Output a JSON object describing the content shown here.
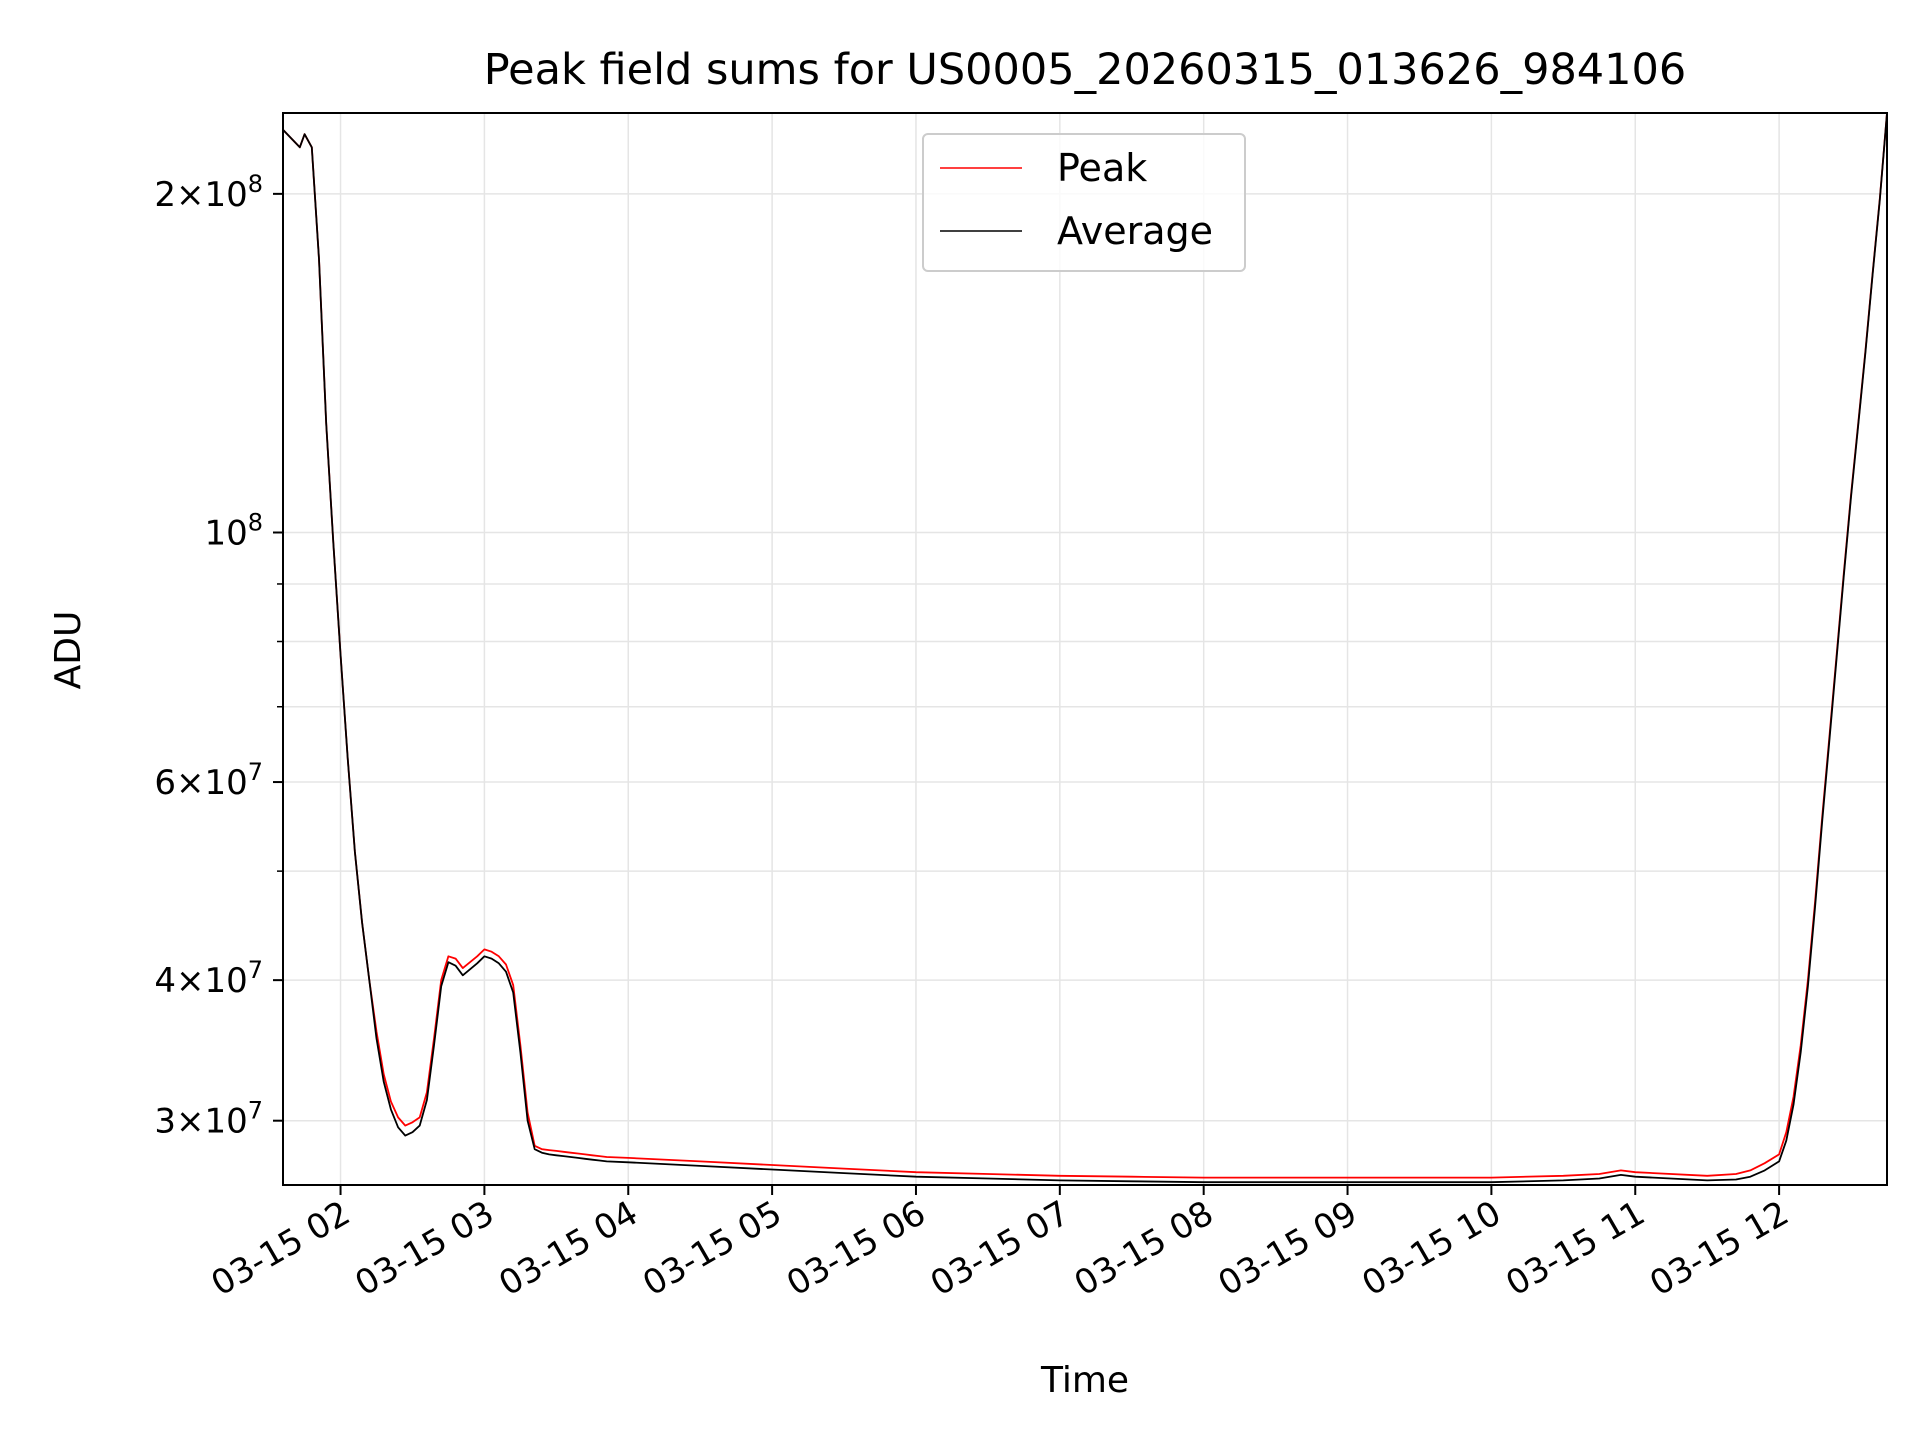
{
  "chart_data": {
    "type": "line",
    "title": "Peak field sums for US0005_20260315_013626_984106",
    "xlabel": "Time",
    "ylabel": "ADU",
    "y_scale": "log",
    "ylim": [
      26300000,
      236000000
    ],
    "xlim": [
      "03-15 01:36",
      "03-15 12:45"
    ],
    "grid": true,
    "legend_position": "top-center",
    "x_tick_labels": [
      "03-15 02",
      "03-15 03",
      "03-15 04",
      "03-15 05",
      "03-15 06",
      "03-15 07",
      "03-15 08",
      "03-15 09",
      "03-15 10",
      "03-15 11",
      "03-15 12"
    ],
    "x_ticks": [
      "03-15 02:00",
      "03-15 03:00",
      "03-15 04:00",
      "03-15 05:00",
      "03-15 06:00",
      "03-15 07:00",
      "03-15 08:00",
      "03-15 09:00",
      "03-15 10:00",
      "03-15 11:00",
      "03-15 12:00"
    ],
    "y_ticks": [
      {
        "value": 200000000,
        "mantissa": "2",
        "exp": "8"
      },
      {
        "value": 100000000,
        "mantissa": "",
        "exp": "8"
      },
      {
        "value": 60000000,
        "mantissa": "6",
        "exp": "7"
      },
      {
        "value": 40000000,
        "mantissa": "4",
        "exp": "7"
      },
      {
        "value": 30000000,
        "mantissa": "3",
        "exp": "7"
      }
    ],
    "y_minor_ticks": [
      50000000,
      70000000,
      80000000,
      90000000
    ],
    "x": [
      "03-15 01:36",
      "03-15 01:43",
      "03-15 01:45",
      "03-15 01:48",
      "03-15 01:51",
      "03-15 01:54",
      "03-15 01:57",
      "03-15 02:00",
      "03-15 02:03",
      "03-15 02:06",
      "03-15 02:09",
      "03-15 02:12",
      "03-15 02:15",
      "03-15 02:18",
      "03-15 02:21",
      "03-15 02:24",
      "03-15 02:27",
      "03-15 02:30",
      "03-15 02:33",
      "03-15 02:36",
      "03-15 02:39",
      "03-15 02:42",
      "03-15 02:45",
      "03-15 02:48",
      "03-15 02:51",
      "03-15 02:54",
      "03-15 02:57",
      "03-15 03:00",
      "03-15 03:03",
      "03-15 03:06",
      "03-15 03:09",
      "03-15 03:12",
      "03-15 03:15",
      "03-15 03:18",
      "03-15 03:21",
      "03-15 03:24",
      "03-15 03:27",
      "03-15 03:30",
      "03-15 03:33",
      "03-15 03:36",
      "03-15 03:39",
      "03-15 03:42",
      "03-15 03:45",
      "03-15 03:48",
      "03-15 03:51",
      "03-15 04:00",
      "03-15 04:30",
      "03-15 05:00",
      "03-15 05:30",
      "03-15 06:00",
      "03-15 06:30",
      "03-15 07:00",
      "03-15 07:30",
      "03-15 08:00",
      "03-15 08:30",
      "03-15 09:00",
      "03-15 09:30",
      "03-15 10:00",
      "03-15 10:30",
      "03-15 10:45",
      "03-15 10:54",
      "03-15 11:00",
      "03-15 11:30",
      "03-15 11:42",
      "03-15 11:48",
      "03-15 11:54",
      "03-15 12:00",
      "03-15 12:03",
      "03-15 12:06",
      "03-15 12:09",
      "03-15 12:12",
      "03-15 12:15",
      "03-15 12:18",
      "03-15 12:21",
      "03-15 12:24",
      "03-15 12:27",
      "03-15 12:30",
      "03-15 12:33",
      "03-15 12:36",
      "03-15 12:39",
      "03-15 12:42",
      "03-15 12:45"
    ],
    "series": [
      {
        "name": "Peak",
        "color": "#ff0000",
        "values": [
          228000000,
          220000000,
          226000000,
          220000000,
          175000000,
          125000000,
          98000000,
          78000000,
          63000000,
          52000000,
          45000000,
          40000000,
          36000000,
          33000000,
          31200000,
          30200000,
          29700000,
          29900000,
          30200000,
          31800000,
          35500000,
          40000000,
          42000000,
          41800000,
          41000000,
          41500000,
          42000000,
          42600000,
          42400000,
          42000000,
          41300000,
          39600000,
          35000000,
          30500000,
          28500000,
          28300000,
          28250000,
          28200000,
          28150000,
          28100000,
          28050000,
          28000000,
          27950000,
          27900000,
          27850000,
          27800000,
          27600000,
          27400000,
          27200000,
          27000000,
          26900000,
          26800000,
          26750000,
          26700000,
          26700000,
          26700000,
          26700000,
          26700000,
          26800000,
          26900000,
          27100000,
          27000000,
          26800000,
          26900000,
          27100000,
          27500000,
          28000000,
          29300000,
          31500000,
          35000000,
          40000000,
          47000000,
          56000000,
          66000000,
          78000000,
          92000000,
          108000000,
          125000000,
          145000000,
          170000000,
          198000000,
          236000000
        ]
      },
      {
        "name": "Average",
        "color": "#000000",
        "values": [
          228000000,
          220000000,
          226000000,
          220000000,
          175000000,
          125000000,
          98000000,
          78000000,
          63000000,
          52000000,
          45000000,
          40000000,
          35500000,
          32500000,
          30700000,
          29600000,
          29100000,
          29300000,
          29700000,
          31300000,
          35000000,
          39500000,
          41500000,
          41200000,
          40400000,
          40900000,
          41400000,
          42000000,
          41800000,
          41400000,
          40700000,
          39000000,
          34500000,
          30000000,
          28300000,
          28100000,
          28000000,
          27950000,
          27900000,
          27850000,
          27800000,
          27750000,
          27700000,
          27650000,
          27600000,
          27550000,
          27350000,
          27150000,
          26950000,
          26750000,
          26650000,
          26550000,
          26500000,
          26450000,
          26450000,
          26450000,
          26450000,
          26450000,
          26550000,
          26650000,
          26850000,
          26750000,
          26550000,
          26600000,
          26750000,
          27100000,
          27600000,
          28800000,
          31000000,
          34500000,
          39500000,
          46500000,
          55500000,
          65500000,
          77500000,
          91500000,
          107500000,
          124500000,
          144500000,
          169500000,
          197500000,
          236000000
        ]
      }
    ]
  }
}
